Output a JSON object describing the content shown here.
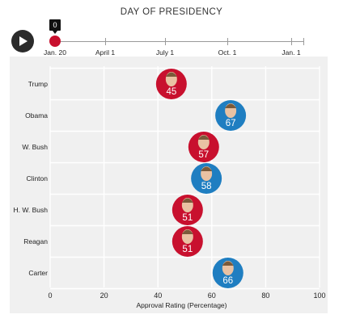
{
  "header": {
    "title": "DAY OF PRESIDENCY"
  },
  "timeline": {
    "current_day": "0",
    "labels": [
      "Jan. 20",
      "April 1",
      "July 1",
      "Oct. 1",
      "Jan. 1"
    ]
  },
  "chart_data": {
    "type": "scatter",
    "title": "",
    "xlabel": "Approval Rating (Percentage)",
    "ylabel": "",
    "xlim": [
      0,
      100
    ],
    "xticks": [
      0,
      20,
      40,
      60,
      80,
      100
    ],
    "categories": [
      "Trump",
      "Obama",
      "W. Bush",
      "Clinton",
      "H. W. Bush",
      "Reagan",
      "Carter"
    ],
    "values": [
      45,
      67,
      57,
      58,
      51,
      51,
      66
    ],
    "point_labels": [
      "45",
      "67",
      "57",
      "58",
      "51",
      "51",
      "66"
    ],
    "party_colors": [
      "#c8102e",
      "#1f7ec1",
      "#c8102e",
      "#1f7ec1",
      "#c8102e",
      "#c8102e",
      "#1f7ec1"
    ],
    "grid": true
  },
  "colors": {
    "republican": "#c8102e",
    "democrat": "#1f7ec1",
    "plot_background": "#f0f0f0"
  }
}
